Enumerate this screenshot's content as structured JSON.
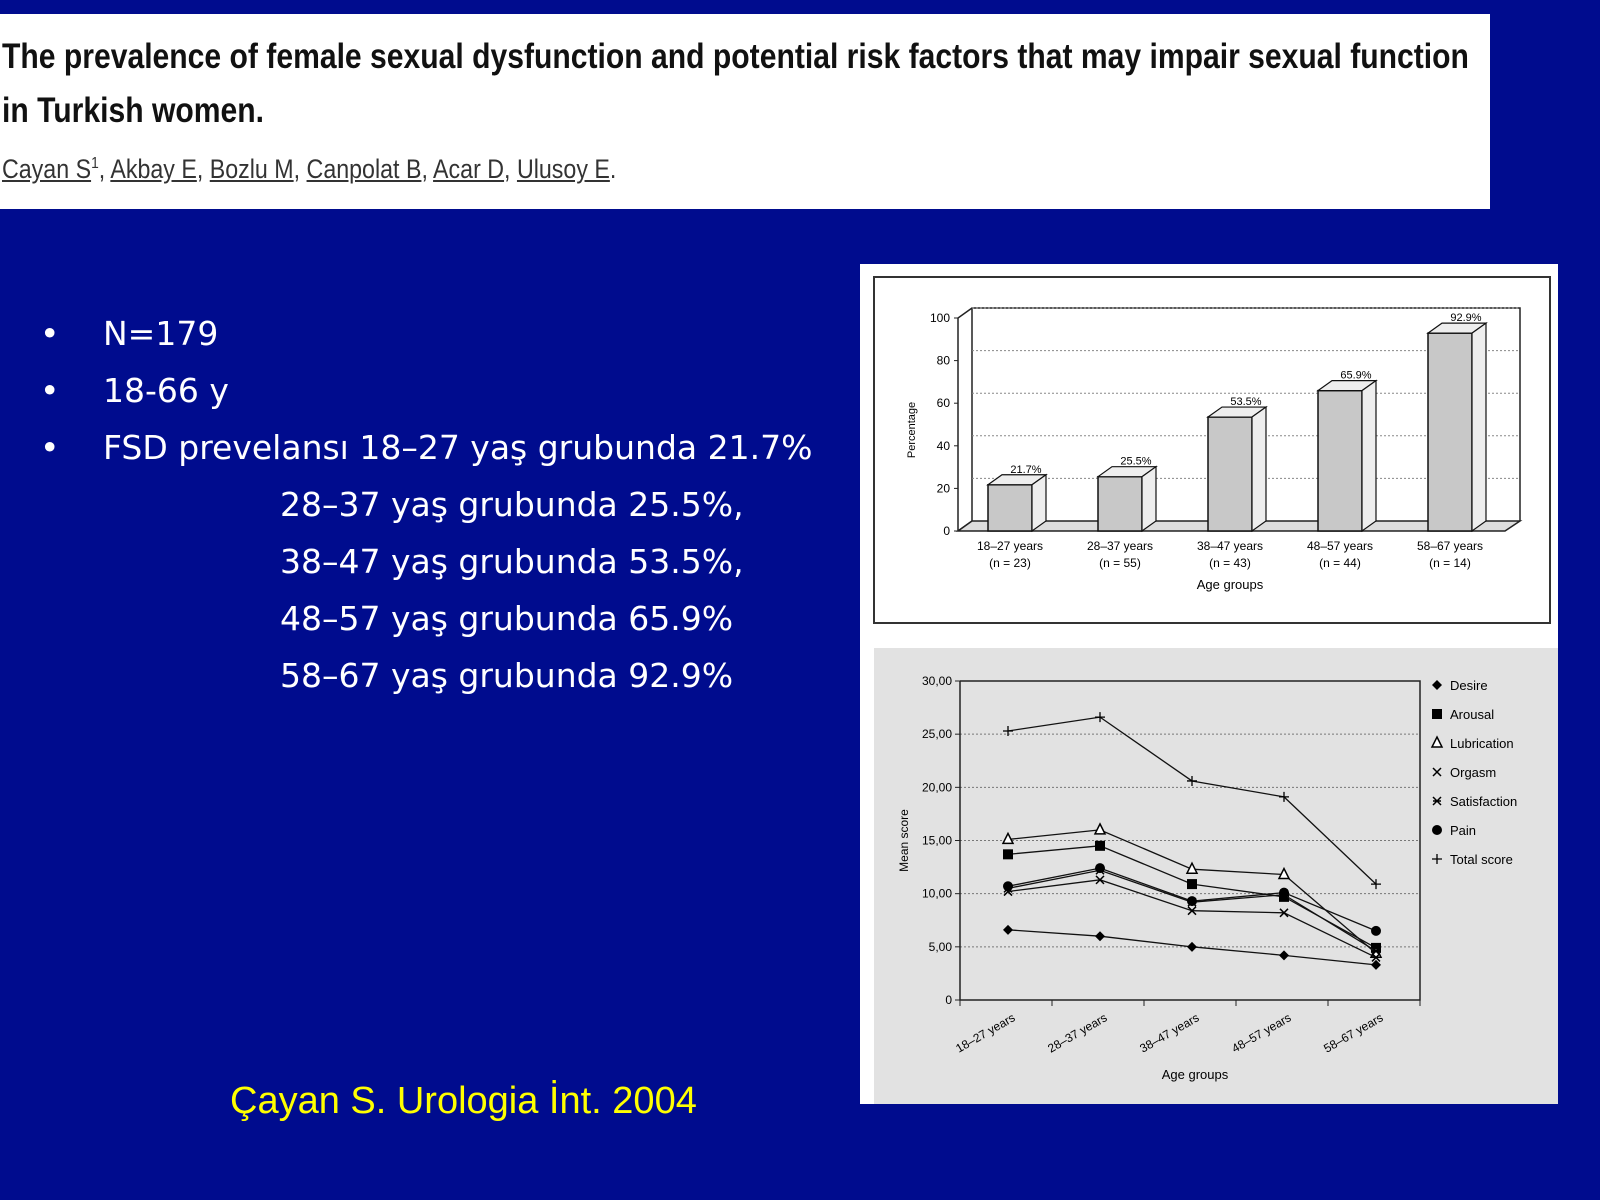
{
  "header": {
    "title": "The prevalence of female sexual dysfunction and potential risk factors that may impair sexual function in Turkish women.",
    "authors": [
      "Cayan S",
      "Akbay E",
      "Bozlu M",
      "Canpolat B",
      "Acar D",
      "Ulusoy E"
    ],
    "first_author_sup": "1"
  },
  "bullets": [
    "N=179",
    "18-66 y",
    "FSD prevelansı 18–27 yaş grubunda 21.7%"
  ],
  "sub_lines": [
    "28–37 yaş grubunda 25.5%,",
    "38–47 yaş grubunda 53.5%,",
    "48–57 yaş grubunda 65.9%",
    "58–67 yaş grubunda 92.9%"
  ],
  "citation": "Çayan S. Urologia İnt. 2004",
  "colors": {
    "background": "#000c8e",
    "citation": "#ffff00"
  },
  "chart_data": [
    {
      "type": "bar",
      "title": "",
      "xlabel": "Age groups",
      "ylabel": "Percentage",
      "ylim": [
        0,
        100
      ],
      "yticks": [
        0,
        20,
        40,
        60,
        80,
        100
      ],
      "grid": true,
      "categories": [
        "18–27 years",
        "28–37 years",
        "38–47 years",
        "48–57 years",
        "58–67 years"
      ],
      "category_n": [
        "(n = 23)",
        "(n = 55)",
        "(n = 43)",
        "(n = 44)",
        "(n = 14)"
      ],
      "values": [
        21.7,
        25.5,
        53.5,
        65.9,
        92.9
      ],
      "data_labels": [
        "21.7%",
        "25.5%",
        "53.5%",
        "65.9%",
        "92.9%"
      ]
    },
    {
      "type": "line",
      "title": "",
      "xlabel": "Age groups",
      "ylabel": "Mean score",
      "ylim": [
        0,
        30
      ],
      "yticks": [
        "0",
        "5,00",
        "10,00",
        "15,00",
        "20,00",
        "25,00",
        "30,00"
      ],
      "grid": true,
      "legend": "right",
      "categories": [
        "18–27 years",
        "28–37 years",
        "38–47 years",
        "48–57 years",
        "58–67 years"
      ],
      "series": [
        {
          "name": "Desire",
          "marker": "diamond",
          "values": [
            6.6,
            6.0,
            5.0,
            4.2,
            3.3
          ]
        },
        {
          "name": "Arousal",
          "marker": "square",
          "values": [
            13.7,
            14.5,
            10.9,
            9.7,
            4.9
          ]
        },
        {
          "name": "Lubrication",
          "marker": "triangle",
          "values": [
            15.1,
            16.0,
            12.3,
            11.8,
            4.4
          ]
        },
        {
          "name": "Orgasm",
          "marker": "x",
          "values": [
            10.2,
            11.3,
            8.4,
            8.2,
            4.0
          ]
        },
        {
          "name": "Satisfaction",
          "marker": "asterisk",
          "values": [
            10.5,
            12.2,
            9.2,
            9.9,
            4.6
          ]
        },
        {
          "name": "Pain",
          "marker": "circle",
          "values": [
            10.7,
            12.4,
            9.3,
            10.1,
            6.5
          ]
        },
        {
          "name": "Total score",
          "marker": "plus",
          "values": [
            25.3,
            26.6,
            20.6,
            19.1,
            10.9
          ]
        }
      ]
    }
  ]
}
